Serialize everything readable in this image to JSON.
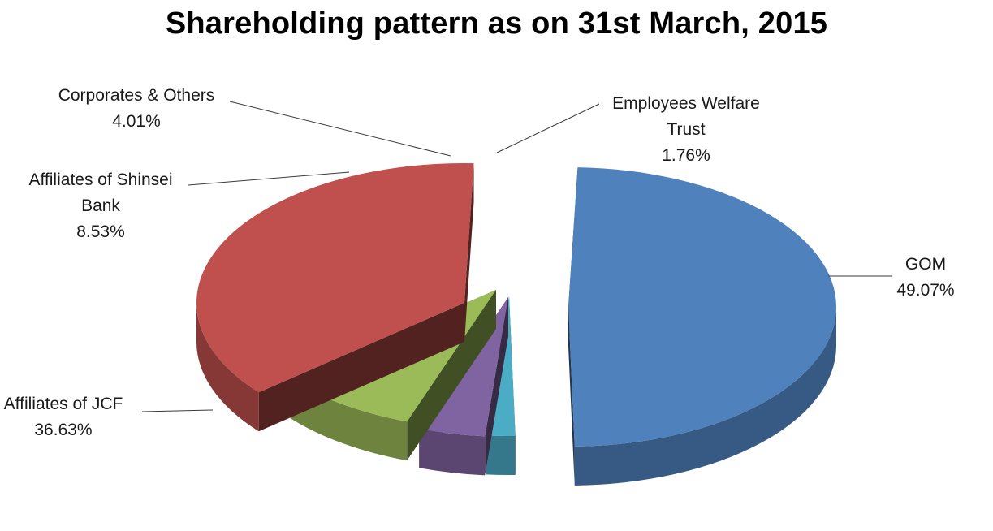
{
  "chart_data": {
    "type": "pie",
    "title": "Shareholding pattern as on 31st March, 2015",
    "style": "3d-exploded",
    "slices": [
      {
        "name": "GOM",
        "value": 49.07,
        "label": "49.07%",
        "color": "#4F81BD"
      },
      {
        "name": "Employees Welfare Trust",
        "value": 1.76,
        "label": "1.76%",
        "color": "#4BACC6"
      },
      {
        "name": "Corporates & Others",
        "value": 4.01,
        "label": "4.01%",
        "color": "#8064A2"
      },
      {
        "name": "Affiliates of Shinsei Bank",
        "value": 8.53,
        "label": "8.53%",
        "color": "#9BBB59"
      },
      {
        "name": "Affiliates of JCF",
        "value": 36.63,
        "label": "36.63%",
        "color": "#C0504D"
      }
    ]
  }
}
